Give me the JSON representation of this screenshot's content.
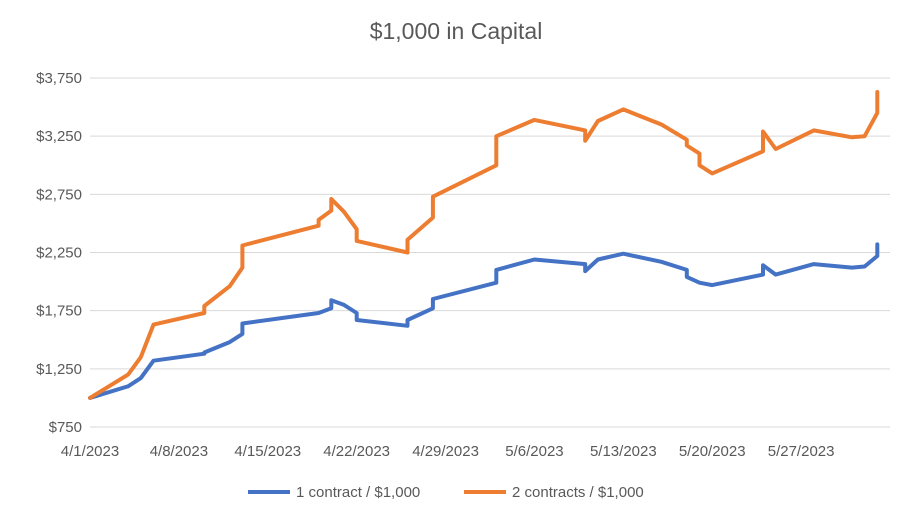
{
  "chart_data": {
    "type": "line",
    "title": "$1,000 in Capital",
    "xlabel": "",
    "ylabel": "",
    "ylim": [
      750,
      3750
    ],
    "yticks": [
      750,
      1250,
      1750,
      2250,
      2750,
      3250,
      3750
    ],
    "ytick_labels": [
      "$750",
      "$1,250",
      "$1,750",
      "$2,250",
      "$2,750",
      "$3,250",
      "$3,750"
    ],
    "xlim": [
      "2023-04-01",
      "2023-06-03"
    ],
    "xticks": [
      "2023-04-01",
      "2023-04-08",
      "2023-04-15",
      "2023-04-22",
      "2023-04-29",
      "2023-05-06",
      "2023-05-13",
      "2023-05-20",
      "2023-05-27"
    ],
    "xtick_labels": [
      "4/1/2023",
      "4/8/2023",
      "4/15/2023",
      "4/22/2023",
      "4/29/2023",
      "5/6/2023",
      "5/13/2023",
      "5/20/2023",
      "5/27/2023"
    ],
    "grid": "horizontal",
    "legend_position": "bottom",
    "series": [
      {
        "name": "1 contract / $1,000",
        "color": "#4472C4",
        "points": [
          [
            "2023-04-01",
            1000
          ],
          [
            "2023-04-04",
            1100
          ],
          [
            "2023-04-05",
            1170
          ],
          [
            "2023-04-06",
            1320
          ],
          [
            "2023-04-10",
            1380
          ],
          [
            "2023-04-10",
            1390
          ],
          [
            "2023-04-12",
            1480
          ],
          [
            "2023-04-13",
            1550
          ],
          [
            "2023-04-13",
            1640
          ],
          [
            "2023-04-19",
            1730
          ],
          [
            "2023-04-20",
            1770
          ],
          [
            "2023-04-20",
            1800
          ],
          [
            "2023-04-20",
            1840
          ],
          [
            "2023-04-21",
            1800
          ],
          [
            "2023-04-22",
            1730
          ],
          [
            "2023-04-22",
            1670
          ],
          [
            "2023-04-26",
            1620
          ],
          [
            "2023-04-26",
            1670
          ],
          [
            "2023-04-28",
            1770
          ],
          [
            "2023-04-28",
            1850
          ],
          [
            "2023-05-03",
            1990
          ],
          [
            "2023-05-03",
            2100
          ],
          [
            "2023-05-06",
            2190
          ],
          [
            "2023-05-10",
            2150
          ],
          [
            "2023-05-10",
            2090
          ],
          [
            "2023-05-11",
            2190
          ],
          [
            "2023-05-13",
            2240
          ],
          [
            "2023-05-16",
            2170
          ],
          [
            "2023-05-18",
            2100
          ],
          [
            "2023-05-18",
            2040
          ],
          [
            "2023-05-19",
            1990
          ],
          [
            "2023-05-20",
            1970
          ],
          [
            "2023-05-24",
            2060
          ],
          [
            "2023-05-24",
            2140
          ],
          [
            "2023-05-25",
            2060
          ],
          [
            "2023-05-28",
            2150
          ],
          [
            "2023-05-31",
            2120
          ],
          [
            "2023-06-01",
            2130
          ],
          [
            "2023-06-02",
            2220
          ],
          [
            "2023-06-02",
            2320
          ]
        ]
      },
      {
        "name": "2 contracts / $1,000",
        "color": "#ED7D31",
        "points": [
          [
            "2023-04-01",
            1000
          ],
          [
            "2023-04-04",
            1200
          ],
          [
            "2023-04-05",
            1350
          ],
          [
            "2023-04-06",
            1630
          ],
          [
            "2023-04-10",
            1730
          ],
          [
            "2023-04-10",
            1790
          ],
          [
            "2023-04-12",
            1960
          ],
          [
            "2023-04-13",
            2120
          ],
          [
            "2023-04-13",
            2310
          ],
          [
            "2023-04-19",
            2480
          ],
          [
            "2023-04-19",
            2530
          ],
          [
            "2023-04-20",
            2610
          ],
          [
            "2023-04-20",
            2710
          ],
          [
            "2023-04-21",
            2600
          ],
          [
            "2023-04-22",
            2450
          ],
          [
            "2023-04-22",
            2350
          ],
          [
            "2023-04-26",
            2250
          ],
          [
            "2023-04-26",
            2360
          ],
          [
            "2023-04-28",
            2550
          ],
          [
            "2023-04-28",
            2730
          ],
          [
            "2023-05-03",
            3000
          ],
          [
            "2023-05-03",
            3250
          ],
          [
            "2023-05-06",
            3390
          ],
          [
            "2023-05-10",
            3300
          ],
          [
            "2023-05-10",
            3210
          ],
          [
            "2023-05-11",
            3380
          ],
          [
            "2023-05-13",
            3480
          ],
          [
            "2023-05-16",
            3350
          ],
          [
            "2023-05-18",
            3220
          ],
          [
            "2023-05-18",
            3170
          ],
          [
            "2023-05-19",
            3100
          ],
          [
            "2023-05-19",
            3000
          ],
          [
            "2023-05-20",
            2930
          ],
          [
            "2023-05-24",
            3120
          ],
          [
            "2023-05-24",
            3290
          ],
          [
            "2023-05-25",
            3140
          ],
          [
            "2023-05-28",
            3300
          ],
          [
            "2023-05-31",
            3240
          ],
          [
            "2023-06-01",
            3250
          ],
          [
            "2023-06-02",
            3450
          ],
          [
            "2023-06-02",
            3630
          ]
        ]
      }
    ]
  }
}
